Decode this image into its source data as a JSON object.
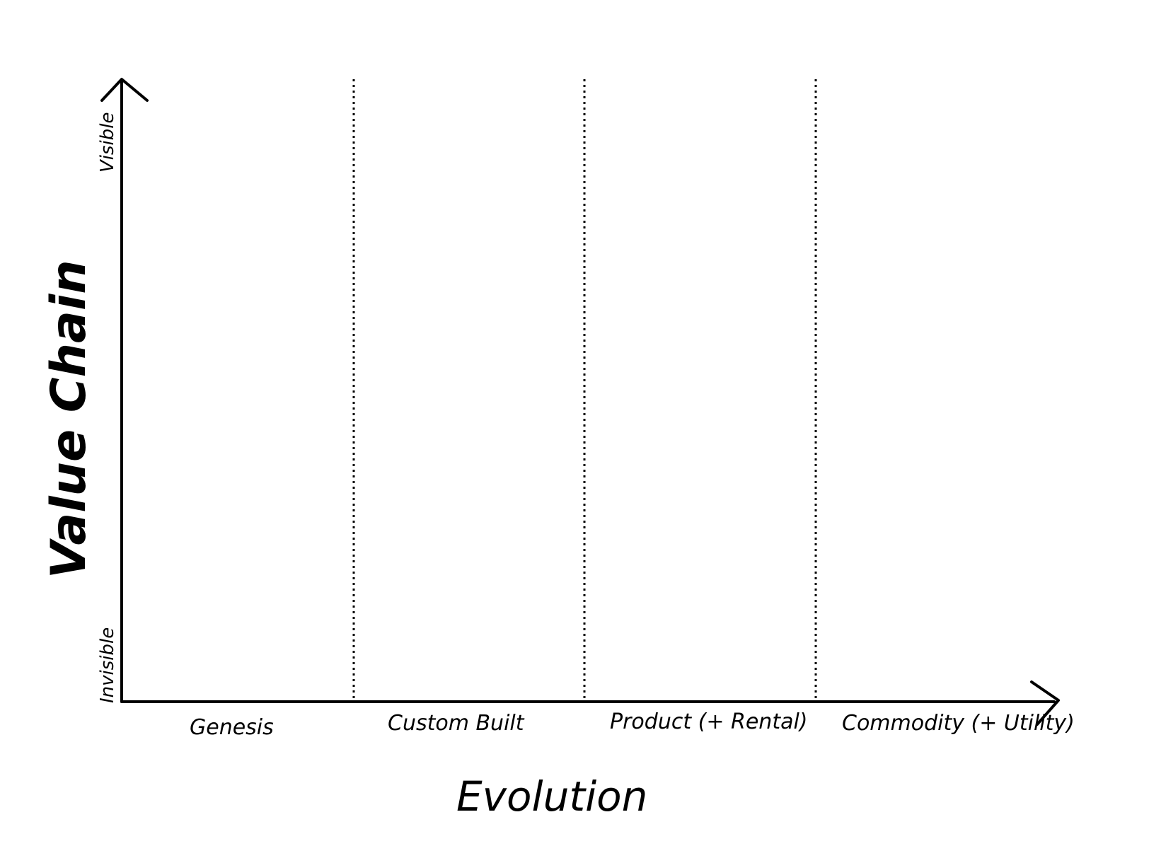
{
  "x_axis": {
    "title": "Evolution",
    "stages": [
      "Genesis",
      "Custom Built",
      "Product (+ Rental)",
      "Commodity (+ Utility)"
    ]
  },
  "y_axis": {
    "title": "Value Chain",
    "top_label": "Visible",
    "bottom_label": "Invisible"
  },
  "colors": {
    "ink": "#000000",
    "background": "#ffffff"
  }
}
